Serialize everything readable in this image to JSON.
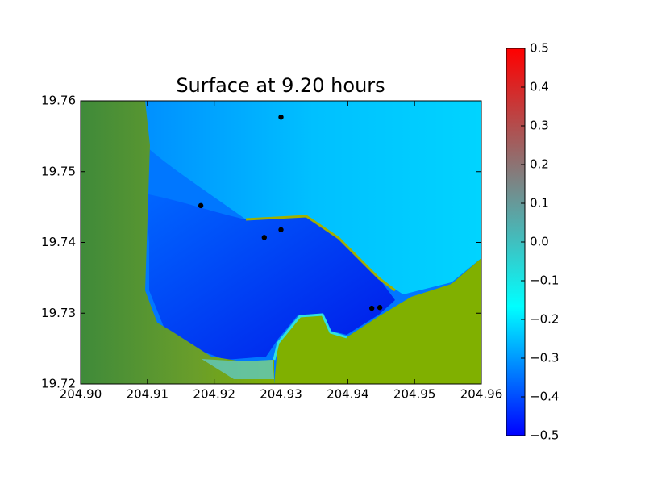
{
  "chart_data": {
    "type": "scatter",
    "title": "Surface at 9.20 hours",
    "x": [
      204.93,
      204.918,
      204.9275,
      204.93,
      204.9436,
      204.9448
    ],
    "values": [
      19.7577,
      19.7452,
      19.7407,
      19.7418,
      19.7307,
      19.7308
    ],
    "color": "#000000",
    "xlim": [
      204.9,
      204.96
    ],
    "xticks": [
      {
        "value": 204.9,
        "label": "204.90"
      },
      204.91,
      204.92,
      204.93,
      204.94,
      204.95,
      204.96
    ],
    "ylim": [
      19.72,
      19.76
    ],
    "yticks": [
      19.72,
      19.73,
      19.74,
      19.75,
      19.76
    ],
    "colorbar": {
      "lim": [
        -0.5,
        0.5
      ],
      "ticks": [
        {
          "value": -0.5,
          "label": "−0.5"
        },
        {
          "value": -0.4,
          "label": "−0.4"
        },
        {
          "value": -0.3,
          "label": "−0.3"
        },
        {
          "value": -0.2,
          "label": "−0.2"
        },
        {
          "value": -0.1,
          "label": "−0.1"
        },
        {
          "value": 0,
          "label": "0.0"
        },
        0.1,
        0.2,
        0.3,
        0.4,
        0.5
      ],
      "colors": [
        "#0000ff",
        "#00ffff",
        "#808080",
        "#ff0000"
      ]
    }
  }
}
